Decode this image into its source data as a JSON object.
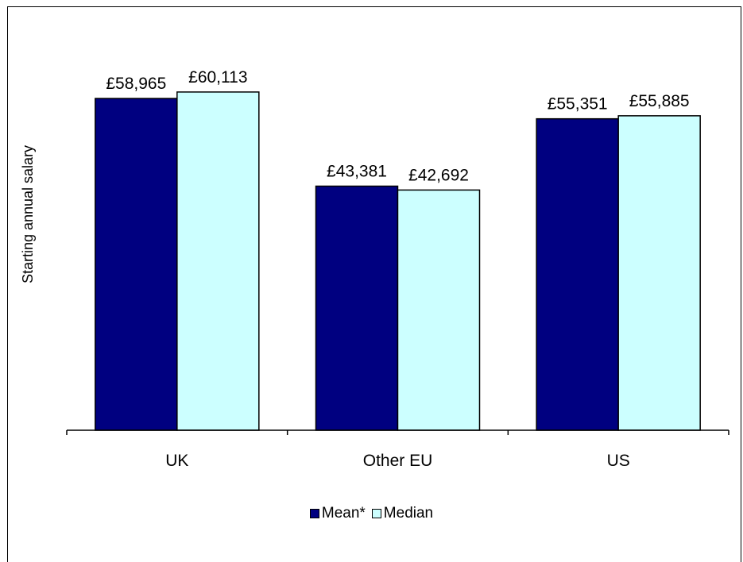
{
  "chart_data": {
    "type": "bar",
    "categories": [
      "UK",
      "Other EU",
      "US"
    ],
    "series": [
      {
        "name": "Mean*",
        "values": [
          58965,
          43381,
          55351
        ],
        "labels": [
          "£58,965",
          "£43,381",
          "£55,351"
        ],
        "color": "#000080"
      },
      {
        "name": "Median",
        "values": [
          60113,
          42692,
          55885
        ],
        "labels": [
          "£60,113",
          "£42,692",
          "£55,885"
        ],
        "color": "#CCFFFF"
      }
    ],
    "ylabel": "Starting annual salary",
    "ylim": [
      0,
      68000
    ],
    "grid": false,
    "legend_position": "bottom"
  }
}
